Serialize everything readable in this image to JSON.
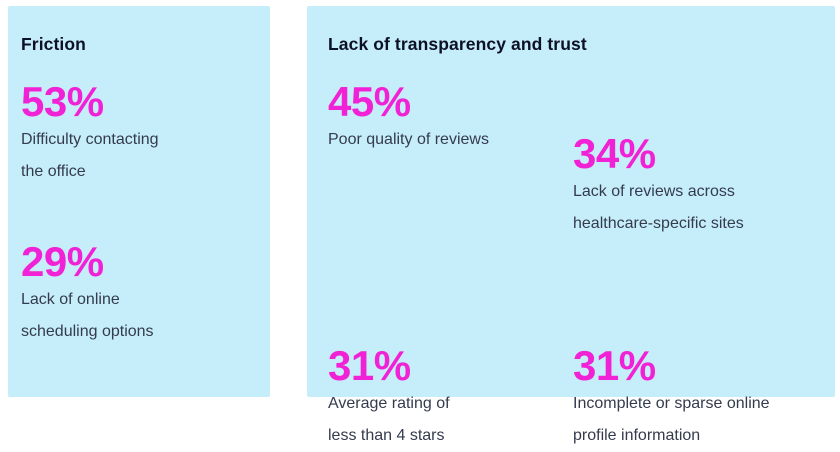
{
  "colors": {
    "card_bg": "#C6EEFA",
    "accent": "#F122D6",
    "heading": "#0D1126",
    "body_text": "#343B4D",
    "page_bg": "#FFFFFF"
  },
  "cards": [
    {
      "title": "Friction",
      "stats": [
        {
          "value": "53%",
          "label_lines": [
            "Difficulty contacting",
            "the office"
          ]
        },
        {
          "value": "29%",
          "label_lines": [
            "Lack of online",
            "scheduling options"
          ]
        }
      ]
    },
    {
      "title": "Lack of transparency and trust",
      "stats": [
        {
          "value": "45%",
          "label_lines": [
            "Poor quality of reviews",
            ""
          ]
        },
        {
          "value": "34%",
          "label_lines": [
            "Lack of reviews across",
            "healthcare-specific sites"
          ]
        },
        {
          "value": "31%",
          "label_lines": [
            "Average rating of",
            "less than 4 stars"
          ]
        },
        {
          "value": "31%",
          "label_lines": [
            "Incomplete or sparse online",
            "profile information"
          ]
        }
      ]
    }
  ],
  "chart_data": [
    {
      "type": "table",
      "title": "Friction",
      "categories": [
        "Difficulty contacting the office",
        "Lack of online scheduling options"
      ],
      "values": [
        53,
        29
      ],
      "unit": "%"
    },
    {
      "type": "table",
      "title": "Lack of transparency and trust",
      "categories": [
        "Poor quality of reviews",
        "Lack of reviews across healthcare-specific sites",
        "Average rating of less than 4 stars",
        "Incomplete or sparse online profile information"
      ],
      "values": [
        45,
        34,
        31,
        31
      ],
      "unit": "%"
    }
  ]
}
